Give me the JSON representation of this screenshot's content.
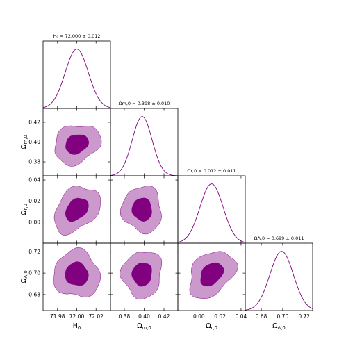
{
  "chart_data": {
    "type": "corner",
    "parameters": [
      {
        "key": "H0",
        "title": "H₀ = 72.000 ± 0.012",
        "label": "H₀",
        "mean": 72.0,
        "sigma": 0.012,
        "range": [
          71.965,
          72.035
        ],
        "ticks": [
          71.98,
          72.0,
          72.02
        ],
        "tick_labels": [
          "71.98",
          "72.00",
          "72.02"
        ]
      },
      {
        "key": "Om",
        "title": "Ωm,0 = 0.398 ± 0.010",
        "label": "Ωm,0",
        "mean": 0.398,
        "sigma": 0.01,
        "range": [
          0.366,
          0.434
        ],
        "ticks": [
          0.38,
          0.4,
          0.42
        ],
        "tick_labels": [
          "0.38",
          "0.40",
          "0.42"
        ]
      },
      {
        "key": "Or",
        "title": "Ωr,0 = 0.012 ± 0.011",
        "label": "Ωr,0",
        "mean": 0.012,
        "sigma": 0.011,
        "range": [
          -0.02,
          0.044
        ],
        "ticks": [
          0.0,
          0.02,
          0.04
        ],
        "tick_labels": [
          "0.00",
          "0.02",
          "0.04"
        ]
      },
      {
        "key": "OL",
        "title": "ΩΛ,0 = 0.699 ± 0.011",
        "label": "ΩΛ,0",
        "mean": 0.699,
        "sigma": 0.011,
        "range": [
          0.665,
          0.728
        ],
        "ticks": [
          0.68,
          0.7,
          0.72
        ],
        "tick_labels": [
          "0.68",
          "0.70",
          "0.72"
        ]
      }
    ],
    "correlations": [
      {
        "x": "H0",
        "y": "Om",
        "rho": 0.2
      },
      {
        "x": "H0",
        "y": "Or",
        "rho": 0.35
      },
      {
        "x": "H0",
        "y": "OL",
        "rho": -0.05
      },
      {
        "x": "Om",
        "y": "Or",
        "rho": -0.05
      },
      {
        "x": "Om",
        "y": "OL",
        "rho": 0.05
      },
      {
        "x": "Or",
        "y": "OL",
        "rho": 0.35
      }
    ],
    "contour_levels": [
      "1-sigma",
      "2-sigma"
    ],
    "colors": {
      "inner_fill": "#800080",
      "outer_fill": "#cc99cc",
      "line": "#800080",
      "frame": "#000000"
    }
  }
}
